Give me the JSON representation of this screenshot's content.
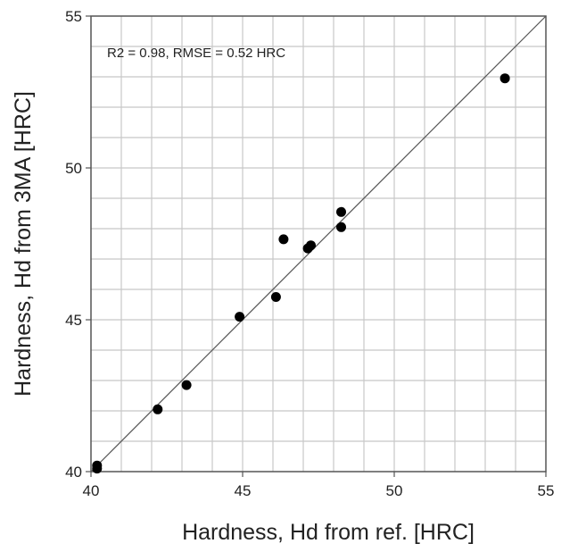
{
  "chart_data": {
    "type": "scatter",
    "xlabel": "Hardness, Hd from ref. [HRC]",
    "ylabel": "Hardness, Hd from 3MA [HRC]",
    "annotation": "R2 = 0.98, RMSE = 0.52 HRC",
    "xlim": [
      40,
      55
    ],
    "ylim": [
      40,
      55
    ],
    "x_major_ticks": [
      40,
      45,
      50,
      55
    ],
    "y_major_ticks": [
      40,
      45,
      50,
      55
    ],
    "x_tick_labels": [
      "40",
      "45",
      "50",
      "55"
    ],
    "y_tick_labels": [
      "40",
      "45",
      "50",
      "55"
    ],
    "minor_step": 1,
    "grid": true,
    "reference_line": "y = x",
    "colors": {
      "points": "#000000",
      "grid": "#c8c8c8",
      "axes": "#555555",
      "line": "#555555"
    },
    "points": [
      {
        "x": 40.2,
        "y": 40.1
      },
      {
        "x": 40.2,
        "y": 40.2
      },
      {
        "x": 42.2,
        "y": 42.05
      },
      {
        "x": 43.15,
        "y": 42.85
      },
      {
        "x": 44.9,
        "y": 45.1
      },
      {
        "x": 46.1,
        "y": 45.75
      },
      {
        "x": 46.35,
        "y": 47.65
      },
      {
        "x": 47.15,
        "y": 47.35
      },
      {
        "x": 47.25,
        "y": 47.45
      },
      {
        "x": 48.25,
        "y": 48.05
      },
      {
        "x": 48.25,
        "y": 48.55
      },
      {
        "x": 53.65,
        "y": 52.95
      }
    ]
  }
}
